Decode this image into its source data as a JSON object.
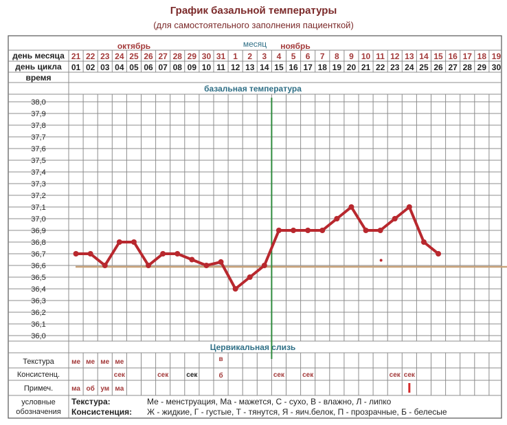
{
  "header": {
    "title": "График базальной температуры",
    "subtitle": "(для самостоятельного заполнения пациенткой)"
  },
  "table": {
    "month_caption": "месяц",
    "month_left": "октябрь",
    "month_right": "ноябрь",
    "row_day_of_month": "день месяца",
    "row_cycle_day": "день цикла",
    "row_time": "время",
    "bbt_section": "базальная температура",
    "mucus_section": "Цервикальная слизь",
    "row_texture": "Текстура",
    "row_consistency": "Консистенц.",
    "row_notes": "Примеч.",
    "legend_label_1": "условные",
    "legend_label_2": "обозначения",
    "legend_texture_key": "Текстура:",
    "legend_texture_text": "Ме - менструация, Ма - мажется, С - сухо, В - влажно, Л - липко",
    "legend_consistency_key": "Консистенция:",
    "legend_consistency_text": "Ж - жидкие, Г - густые, Т - тянутся, Я - яич.белок, П - прозрачные, Б - белесые"
  },
  "colors": {
    "grid": "#8c8c8c",
    "accent_text": "#a33a3a",
    "month_caption": "#2f6f86",
    "section_title": "#2f6f86",
    "temperature_line": "#b8282e",
    "coverline": "#c8a27a",
    "ovulation_line": "#2e8b3d",
    "dark_text": "#222222"
  },
  "chart_data": {
    "type": "line",
    "title": "График базальной температуры",
    "subtitle": "(для самостоятельного заполнения пациенткой)",
    "ylabel": "",
    "xlabel": "",
    "ylim": [
      36.0,
      38.0
    ],
    "y_ticks": [
      "38,0",
      "37,9",
      "37,8",
      "37,7",
      "37,6",
      "37,5",
      "37,4",
      "37,3",
      "37,2",
      "37,1",
      "37,0",
      "36,9",
      "36,8",
      "36,7",
      "36,6",
      "36,5",
      "36,4",
      "36,3",
      "36,2",
      "36,1",
      "36,0"
    ],
    "day_of_month": [
      "21",
      "22",
      "23",
      "24",
      "25",
      "26",
      "27",
      "28",
      "29",
      "30",
      "31",
      "1",
      "2",
      "3",
      "4",
      "5",
      "6",
      "7",
      "8",
      "9",
      "10",
      "11",
      "12",
      "13",
      "14",
      "15",
      "16",
      "17",
      "18",
      "19"
    ],
    "cycle_day": [
      "01",
      "02",
      "03",
      "04",
      "05",
      "06",
      "07",
      "08",
      "09",
      "10",
      "11",
      "12",
      "13",
      "14",
      "15",
      "16",
      "17",
      "18",
      "19",
      "20",
      "21",
      "22",
      "23",
      "24",
      "25",
      "26",
      "27",
      "28",
      "29",
      "30"
    ],
    "series": [
      {
        "values": [
          36.7,
          36.7,
          36.6,
          36.8,
          36.8,
          36.6,
          36.7,
          36.7,
          36.65,
          36.6,
          36.63,
          36.4,
          36.5,
          36.6,
          36.9,
          36.9,
          36.9,
          36.9,
          37.0,
          37.1,
          36.9,
          36.9,
          37.0,
          37.1,
          36.8,
          36.7
        ]
      }
    ],
    "coverline_value": 36.6,
    "ovulation_cycle_day": 14,
    "grid": true,
    "cervical_mucus": {
      "texture": {
        "1": "ме",
        "2": "ме",
        "3": "ме",
        "4": "ме",
        "11": "в"
      },
      "consistency": {
        "4": "сек",
        "7": "сек",
        "9": "сек",
        "11": "б",
        "15": "сек",
        "17": "сек",
        "23": "сек",
        "24": "сек"
      },
      "notes": {
        "1": "ма",
        "2": "об",
        "3": "ум",
        "4": "ма"
      }
    }
  }
}
